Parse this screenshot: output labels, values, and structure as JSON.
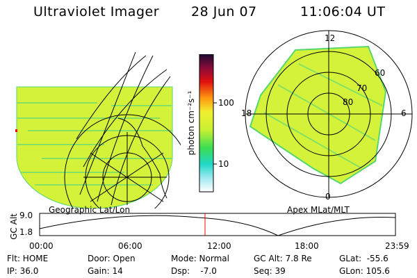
{
  "header": {
    "instrument": "Ultraviolet Imager",
    "date": "28 Jun 07",
    "time": "11:06:04 UT"
  },
  "colorbar": {
    "unit_label": "photon cm⁻²s⁻¹",
    "ticks": [
      "100",
      "10"
    ]
  },
  "left_panel": {
    "caption": "Geographic Lat/Lon"
  },
  "right_panel": {
    "caption": "Apex MLat/MLT",
    "mlt_labels": {
      "top": "12",
      "left": "18",
      "right": "6",
      "bottom": "0"
    },
    "lat_labels": [
      "60",
      "70",
      "80"
    ]
  },
  "altitude_plot": {
    "ylabel": "GC Alt",
    "yticks": [
      "9.0",
      "1.8"
    ],
    "time_ticks": [
      "00:00",
      "06:00",
      "12:00",
      "18:00",
      "23:59"
    ],
    "marker_color": "#ff0000"
  },
  "info": {
    "flt": "Flt: HOME",
    "ip": "IP: 36.0",
    "door": "Door: Open",
    "gain": "Gain: 14",
    "mode": "Mode: Normal",
    "dsp": "Dsp:    -7.0",
    "gcalt": "GC Alt: 7.8 Re",
    "seq": "Seq: 39",
    "glat": "GLat:  -55.6",
    "glon": "GLon: 105.6"
  }
}
